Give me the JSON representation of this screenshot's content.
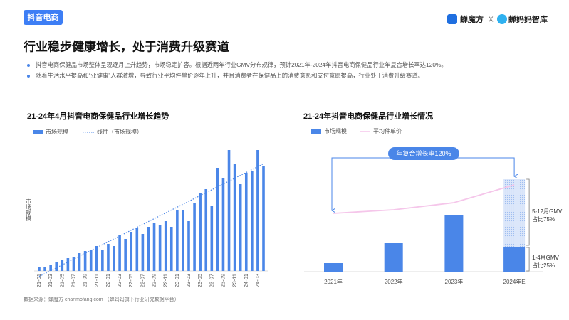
{
  "header": {
    "tag": "抖音电商",
    "brand1": "蝉魔方",
    "separator": "X",
    "brand2": "蝉妈妈智库"
  },
  "title": "行业稳步健康增长，处于消费升级赛道",
  "bullets": [
    "抖音电商保健品市场整体呈现逐月上升趋势，市场稳定扩容。根据近两年行业GMV分布规律，预计2021年-2024年抖音电商保健品行业年复合增长率达120%。",
    "随着生活水平提高和“亚健康”人群激增，导致行业平均件单价逐年上升，并且消费者在保健品上的消费意愿和支付意愿提高，行业处于消费升级赛道。"
  ],
  "source": "数据来源：蝉魔方 chanmofang.com （蝉妈妈旗下行业研究数据平台）",
  "chart_data": [
    {
      "type": "bar",
      "title": "21-24年4月抖音电商保健品行业增长趋势",
      "y_label": "市场规模",
      "categories": [
        "21-01",
        null,
        "21-03",
        null,
        "21-05",
        null,
        "21-07",
        null,
        "21-09",
        null,
        "21-11",
        null,
        "22-01",
        null,
        "22-03",
        null,
        "22-05",
        null,
        "22-07",
        null,
        "22-09",
        null,
        "22-11",
        null,
        "23-01",
        null,
        "23-03",
        null,
        "23-05",
        null,
        "23-07",
        null,
        "23-09",
        null,
        "23-11",
        null,
        "24-01",
        null,
        "24-03",
        null
      ],
      "series": [
        {
          "name": "市场规模",
          "color": "#4a86e8",
          "values": [
            5,
            6,
            8,
            12,
            15,
            18,
            20,
            25,
            28,
            30,
            35,
            30,
            38,
            35,
            50,
            45,
            55,
            60,
            52,
            62,
            68,
            65,
            70,
            62,
            85,
            85,
            70,
            95,
            110,
            115,
            92,
            145,
            130,
            170,
            150,
            122,
            138,
            140,
            170,
            148
          ]
        }
      ],
      "trendline": {
        "name": "线性（市场规模）",
        "color": "#4a86e8"
      },
      "ylim": [
        0,
        180
      ]
    },
    {
      "type": "bar",
      "title": "21-24年抖音电商保健品行业增长情况",
      "categories": [
        "2021年",
        "2022年",
        "2023年",
        "2024年E"
      ],
      "series": [
        {
          "name": "市场规模",
          "color": "#4a86e8",
          "values": [
            12,
            40,
            79,
            35
          ]
        },
        {
          "color": "#c9daf6",
          "values": [
            null,
            null,
            null,
            95
          ]
        },
        {
          "name": "平均件单价",
          "type": "line",
          "color": "#f5c6ea",
          "axis": "y2",
          "values": [
            82,
            87,
            97,
            122
          ]
        }
      ],
      "ylim": [
        0,
        180
      ],
      "y2lim": [
        0,
        180
      ],
      "annotations": {
        "cagr": "年复合增长率120%",
        "share_later": [
          "5-12月GMV",
          "占比75%"
        ],
        "share_early": [
          "1-4月GMV",
          "占比25%"
        ]
      }
    }
  ]
}
